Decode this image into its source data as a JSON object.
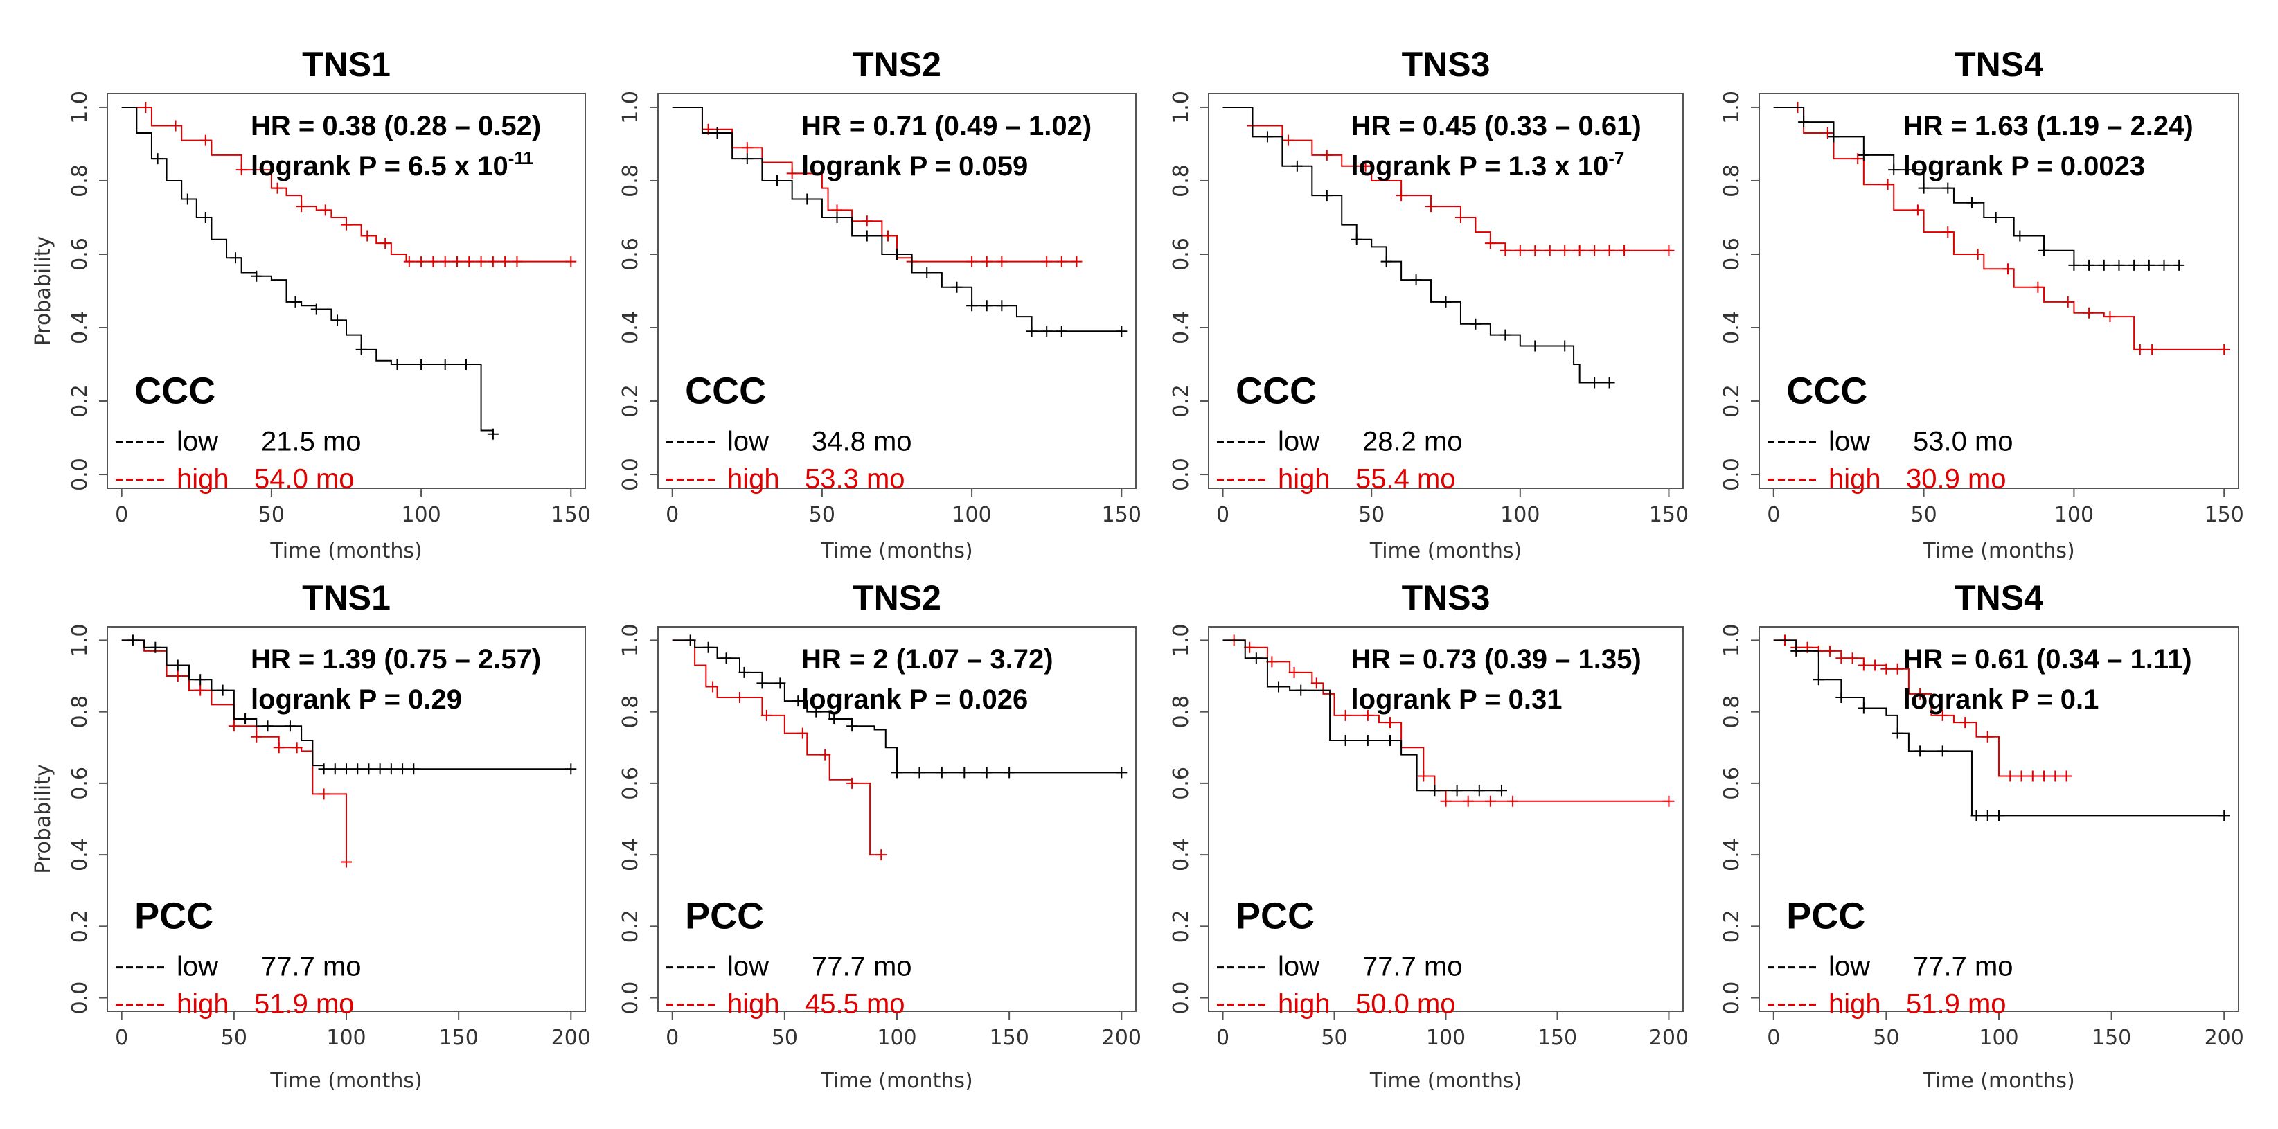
{
  "figure": {
    "low_color": "#000000",
    "high_color": "#e00000",
    "low_label": "low",
    "high_label": "high",
    "ylabel": "Probability",
    "xlabel": "Time (months)"
  },
  "chart_data": [
    {
      "type": "line",
      "title": "TNS1",
      "cohort": "CCC",
      "hr": "HR = 0.38 (0.28 – 0.52)",
      "p_prefix": "logrank P = 6.5 x 10",
      "p_exp": "-11",
      "low_median": "21.5 mo",
      "high_median": "54.0 mo",
      "xlabel": "Time (months)",
      "ylabel": "Probability",
      "xlim": [
        0,
        150
      ],
      "ylim": [
        0,
        1
      ],
      "xticks": [
        0,
        50,
        100,
        150
      ],
      "yticks": [
        0.0,
        0.2,
        0.4,
        0.6,
        0.8,
        1.0
      ],
      "series": [
        {
          "name": "low",
          "color": "#000000",
          "x": [
            0,
            5,
            10,
            15,
            20,
            25,
            30,
            35,
            40,
            45,
            50,
            55,
            60,
            65,
            70,
            75,
            80,
            85,
            90,
            95,
            100,
            105,
            110,
            115,
            119,
            120,
            124
          ],
          "y": [
            1.0,
            0.93,
            0.86,
            0.8,
            0.75,
            0.7,
            0.64,
            0.59,
            0.55,
            0.54,
            0.53,
            0.47,
            0.46,
            0.45,
            0.42,
            0.38,
            0.34,
            0.31,
            0.3,
            0.3,
            0.3,
            0.3,
            0.3,
            0.3,
            0.3,
            0.12,
            0.11
          ],
          "censor_x": [
            12,
            22,
            28,
            38,
            45,
            58,
            65,
            72,
            80,
            92,
            100,
            108,
            115,
            124
          ]
        },
        {
          "name": "high",
          "color": "#e00000",
          "x": [
            0,
            10,
            20,
            30,
            40,
            50,
            55,
            60,
            65,
            70,
            75,
            80,
            85,
            90,
            95,
            100,
            150
          ],
          "y": [
            1.0,
            0.95,
            0.91,
            0.87,
            0.83,
            0.78,
            0.76,
            0.73,
            0.72,
            0.7,
            0.68,
            0.65,
            0.63,
            0.6,
            0.58,
            0.58,
            0.58
          ],
          "censor_x": [
            8,
            18,
            28,
            40,
            52,
            60,
            68,
            75,
            82,
            88,
            96,
            100,
            104,
            108,
            112,
            116,
            120,
            124,
            128,
            132,
            150
          ]
        }
      ]
    },
    {
      "type": "line",
      "title": "TNS2",
      "cohort": "CCC",
      "hr": "HR = 0.71 (0.49 – 1.02)",
      "p_prefix": "logrank P = 0.059",
      "p_exp": "",
      "low_median": "34.8 mo",
      "high_median": "53.3 mo",
      "xlabel": "Time (months)",
      "ylabel": "Probability",
      "xlim": [
        0,
        150
      ],
      "ylim": [
        0,
        1
      ],
      "xticks": [
        0,
        50,
        100,
        150
      ],
      "yticks": [
        0.0,
        0.2,
        0.4,
        0.6,
        0.8,
        1.0
      ],
      "series": [
        {
          "name": "low",
          "color": "#000000",
          "x": [
            0,
            10,
            20,
            30,
            40,
            50,
            60,
            70,
            80,
            90,
            100,
            110,
            115,
            120,
            150
          ],
          "y": [
            1.0,
            0.93,
            0.86,
            0.8,
            0.75,
            0.7,
            0.65,
            0.6,
            0.55,
            0.51,
            0.46,
            0.46,
            0.43,
            0.39,
            0.39
          ],
          "censor_x": [
            15,
            25,
            35,
            45,
            55,
            65,
            75,
            85,
            95,
            100,
            105,
            110,
            120,
            125,
            130,
            150
          ]
        },
        {
          "name": "high",
          "color": "#e00000",
          "x": [
            0,
            10,
            20,
            30,
            40,
            50,
            52,
            60,
            70,
            75,
            80,
            90,
            100,
            135
          ],
          "y": [
            1.0,
            0.94,
            0.89,
            0.85,
            0.82,
            0.78,
            0.72,
            0.69,
            0.65,
            0.59,
            0.58,
            0.58,
            0.58,
            0.58
          ],
          "censor_x": [
            12,
            25,
            40,
            55,
            65,
            72,
            80,
            100,
            105,
            110,
            125,
            130,
            135
          ]
        }
      ]
    },
    {
      "type": "line",
      "title": "TNS3",
      "cohort": "CCC",
      "hr": "HR = 0.45 (0.33 – 0.61)",
      "p_prefix": "logrank P = 1.3 x 10",
      "p_exp": "-7",
      "low_median": "28.2 mo",
      "high_median": "55.4 mo",
      "xlabel": "Time (months)",
      "ylabel": "Probability",
      "xlim": [
        0,
        150
      ],
      "ylim": [
        0,
        1
      ],
      "xticks": [
        0,
        50,
        100,
        150
      ],
      "yticks": [
        0.0,
        0.2,
        0.4,
        0.6,
        0.8,
        1.0
      ],
      "series": [
        {
          "name": "low",
          "color": "#000000",
          "x": [
            0,
            10,
            20,
            30,
            40,
            45,
            50,
            55,
            60,
            70,
            80,
            90,
            100,
            110,
            118,
            120,
            130
          ],
          "y": [
            1.0,
            0.92,
            0.84,
            0.76,
            0.68,
            0.64,
            0.62,
            0.58,
            0.53,
            0.47,
            0.41,
            0.38,
            0.35,
            0.35,
            0.3,
            0.25,
            0.25
          ],
          "censor_x": [
            15,
            25,
            35,
            45,
            55,
            65,
            75,
            85,
            95,
            105,
            115,
            125,
            130
          ]
        },
        {
          "name": "high",
          "color": "#e00000",
          "x": [
            0,
            10,
            20,
            30,
            40,
            50,
            60,
            70,
            80,
            85,
            90,
            95,
            150
          ],
          "y": [
            1.0,
            0.95,
            0.91,
            0.87,
            0.84,
            0.8,
            0.76,
            0.73,
            0.7,
            0.66,
            0.63,
            0.61,
            0.61
          ],
          "censor_x": [
            10,
            22,
            35,
            48,
            60,
            70,
            80,
            90,
            95,
            100,
            105,
            110,
            115,
            120,
            125,
            130,
            135,
            150
          ]
        }
      ]
    },
    {
      "type": "line",
      "title": "TNS4",
      "cohort": "CCC",
      "hr": "HR = 1.63 (1.19 – 2.24)",
      "p_prefix": "logrank P = 0.0023",
      "p_exp": "",
      "low_median": "53.0 mo",
      "high_median": "30.9 mo",
      "xlabel": "Time (months)",
      "ylabel": "Probability",
      "xlim": [
        0,
        150
      ],
      "ylim": [
        0,
        1
      ],
      "xticks": [
        0,
        50,
        100,
        150
      ],
      "yticks": [
        0.0,
        0.2,
        0.4,
        0.6,
        0.8,
        1.0
      ],
      "series": [
        {
          "name": "low",
          "color": "#000000",
          "x": [
            0,
            10,
            20,
            30,
            40,
            50,
            60,
            70,
            80,
            90,
            100,
            130,
            135
          ],
          "y": [
            1.0,
            0.96,
            0.92,
            0.87,
            0.83,
            0.78,
            0.74,
            0.7,
            0.65,
            0.61,
            0.57,
            0.57,
            0.57
          ],
          "censor_x": [
            10,
            20,
            30,
            40,
            50,
            58,
            66,
            74,
            82,
            90,
            100,
            105,
            110,
            115,
            120,
            125,
            130,
            135
          ]
        },
        {
          "name": "high",
          "color": "#e00000",
          "x": [
            0,
            10,
            20,
            30,
            40,
            50,
            60,
            70,
            80,
            90,
            100,
            110,
            118,
            120,
            150
          ],
          "y": [
            1.0,
            0.93,
            0.86,
            0.79,
            0.72,
            0.66,
            0.6,
            0.56,
            0.51,
            0.47,
            0.44,
            0.43,
            0.43,
            0.34,
            0.34
          ],
          "censor_x": [
            8,
            18,
            28,
            38,
            48,
            58,
            68,
            78,
            88,
            98,
            105,
            112,
            122,
            126,
            150
          ]
        }
      ]
    },
    {
      "type": "line",
      "title": "TNS1",
      "cohort": "PCC",
      "hr": "HR = 1.39 (0.75 – 2.57)",
      "p_prefix": "logrank P = 0.29",
      "p_exp": "",
      "low_median": "77.7 mo",
      "high_median": "51.9 mo",
      "xlabel": "Time (months)",
      "ylabel": "Probability",
      "xlim": [
        0,
        200
      ],
      "ylim": [
        0,
        1
      ],
      "xticks": [
        0,
        50,
        100,
        150,
        200
      ],
      "yticks": [
        0.0,
        0.2,
        0.4,
        0.6,
        0.8,
        1.0
      ],
      "series": [
        {
          "name": "low",
          "color": "#000000",
          "x": [
            0,
            10,
            20,
            30,
            40,
            50,
            60,
            80,
            85,
            90,
            100,
            200
          ],
          "y": [
            1.0,
            0.98,
            0.93,
            0.89,
            0.86,
            0.78,
            0.76,
            0.72,
            0.65,
            0.64,
            0.64,
            0.64
          ],
          "censor_x": [
            5,
            15,
            25,
            35,
            45,
            55,
            65,
            75,
            90,
            95,
            100,
            105,
            110,
            115,
            120,
            125,
            130,
            200
          ]
        },
        {
          "name": "high",
          "color": "#e00000",
          "x": [
            0,
            10,
            20,
            30,
            40,
            50,
            60,
            70,
            80,
            85,
            90,
            95,
            100
          ],
          "y": [
            1.0,
            0.97,
            0.9,
            0.86,
            0.82,
            0.76,
            0.73,
            0.7,
            0.69,
            0.57,
            0.57,
            0.57,
            0.38
          ],
          "censor_x": [
            25,
            35,
            50,
            60,
            70,
            78,
            90,
            100
          ]
        }
      ]
    },
    {
      "type": "line",
      "title": "TNS2",
      "cohort": "PCC",
      "hr": "HR = 2 (1.07 – 3.72)",
      "p_prefix": "logrank P = 0.026",
      "p_exp": "",
      "low_median": "77.7 mo",
      "high_median": "45.5 mo",
      "xlabel": "Time (months)",
      "ylabel": "Probability",
      "xlim": [
        0,
        200
      ],
      "ylim": [
        0,
        1
      ],
      "xticks": [
        0,
        50,
        100,
        150,
        200
      ],
      "yticks": [
        0.0,
        0.2,
        0.4,
        0.6,
        0.8,
        1.0
      ],
      "series": [
        {
          "name": "low",
          "color": "#000000",
          "x": [
            0,
            10,
            20,
            30,
            40,
            50,
            60,
            70,
            80,
            90,
            95,
            100,
            200
          ],
          "y": [
            1.0,
            0.98,
            0.95,
            0.91,
            0.88,
            0.83,
            0.8,
            0.78,
            0.76,
            0.75,
            0.7,
            0.63,
            0.63
          ],
          "censor_x": [
            8,
            16,
            24,
            32,
            40,
            48,
            56,
            64,
            72,
            80,
            100,
            110,
            120,
            130,
            140,
            150,
            200
          ]
        },
        {
          "name": "high",
          "color": "#e00000",
          "x": [
            0,
            10,
            15,
            20,
            30,
            40,
            50,
            60,
            70,
            80,
            88,
            90,
            93
          ],
          "y": [
            1.0,
            0.93,
            0.87,
            0.84,
            0.84,
            0.79,
            0.74,
            0.68,
            0.61,
            0.6,
            0.4,
            0.4,
            0.4
          ],
          "censor_x": [
            18,
            30,
            42,
            58,
            68,
            80,
            93
          ]
        }
      ]
    },
    {
      "type": "line",
      "title": "TNS3",
      "cohort": "PCC",
      "hr": "HR = 0.73 (0.39 – 1.35)",
      "p_prefix": "logrank P = 0.31",
      "p_exp": "",
      "low_median": "77.7 mo",
      "high_median": "50.0 mo",
      "xlabel": "Time (months)",
      "ylabel": "Probability",
      "xlim": [
        0,
        200
      ],
      "ylim": [
        0,
        1
      ],
      "xticks": [
        0,
        50,
        100,
        150,
        200
      ],
      "yticks": [
        0.0,
        0.2,
        0.4,
        0.6,
        0.8,
        1.0
      ],
      "series": [
        {
          "name": "low",
          "color": "#000000",
          "x": [
            0,
            10,
            20,
            30,
            40,
            45,
            48,
            55,
            60,
            70,
            80,
            85,
            87,
            100,
            125
          ],
          "y": [
            1.0,
            0.95,
            0.87,
            0.86,
            0.86,
            0.86,
            0.72,
            0.72,
            0.72,
            0.72,
            0.68,
            0.68,
            0.58,
            0.58,
            0.58
          ],
          "censor_x": [
            15,
            25,
            35,
            55,
            65,
            75,
            95,
            105,
            115,
            125
          ]
        },
        {
          "name": "high",
          "color": "#e00000",
          "x": [
            0,
            10,
            20,
            30,
            40,
            45,
            50,
            60,
            70,
            80,
            90,
            95,
            100,
            200
          ],
          "y": [
            1.0,
            0.98,
            0.94,
            0.91,
            0.88,
            0.85,
            0.79,
            0.79,
            0.77,
            0.7,
            0.62,
            0.58,
            0.55,
            0.55
          ],
          "censor_x": [
            5,
            12,
            22,
            32,
            42,
            55,
            65,
            75,
            90,
            100,
            110,
            120,
            130,
            200
          ]
        }
      ]
    },
    {
      "type": "line",
      "title": "TNS4",
      "cohort": "PCC",
      "hr": "HR = 0.61 (0.34 – 1.11)",
      "p_prefix": "logrank P = 0.1",
      "p_exp": "",
      "low_median": "77.7 mo",
      "high_median": "51.9 mo",
      "xlabel": "Time (months)",
      "ylabel": "Probability",
      "xlim": [
        0,
        200
      ],
      "ylim": [
        0,
        1
      ],
      "xticks": [
        0,
        50,
        100,
        150,
        200
      ],
      "yticks": [
        0.0,
        0.2,
        0.4,
        0.6,
        0.8,
        1.0
      ],
      "series": [
        {
          "name": "low",
          "color": "#000000",
          "x": [
            0,
            10,
            20,
            30,
            40,
            50,
            55,
            60,
            70,
            80,
            85,
            88,
            90,
            100,
            200
          ],
          "y": [
            1.0,
            0.97,
            0.89,
            0.84,
            0.81,
            0.79,
            0.74,
            0.69,
            0.69,
            0.69,
            0.69,
            0.51,
            0.51,
            0.51,
            0.51
          ],
          "censor_x": [
            10,
            20,
            30,
            40,
            55,
            65,
            75,
            90,
            95,
            100,
            200
          ]
        },
        {
          "name": "high",
          "color": "#e00000",
          "x": [
            0,
            10,
            20,
            30,
            40,
            50,
            60,
            70,
            80,
            90,
            100,
            130
          ],
          "y": [
            1.0,
            0.98,
            0.97,
            0.95,
            0.93,
            0.92,
            0.85,
            0.79,
            0.77,
            0.73,
            0.62,
            0.62
          ],
          "censor_x": [
            5,
            10,
            15,
            20,
            25,
            30,
            35,
            40,
            45,
            50,
            55,
            65,
            75,
            85,
            95,
            105,
            110,
            115,
            120,
            125,
            130
          ]
        }
      ]
    }
  ]
}
